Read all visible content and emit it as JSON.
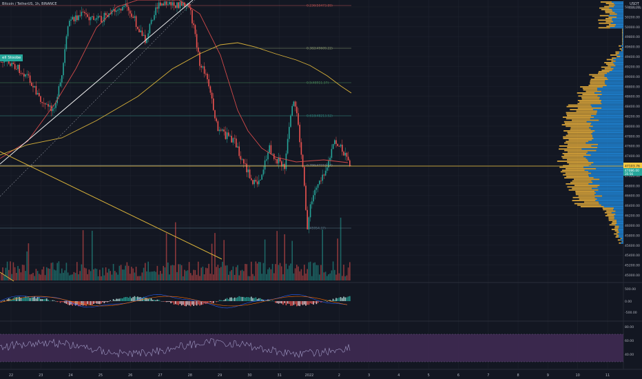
{
  "header": {
    "title": "Bitcoin / TetherUS, 1h, BINANCE",
    "badge": "ell Stoobe",
    "currency": "USDT",
    "currency_sub": "50441.48"
  },
  "colors": {
    "background": "#131722",
    "up": "#26a69a",
    "down": "#ef5350",
    "volume_profile_up": "#2196f3",
    "volume_profile_down": "#f0b43c",
    "current_price_line": "#f5c842",
    "ma_red": "#d24a4a",
    "ma_yellow": "#d9b23a",
    "trendline": "#f0f0f0",
    "fib_line": "#3a5a4a",
    "rsi_band": "#3f2a52",
    "rsi_line": "#a29cc7"
  },
  "price_axis": {
    "ticks": [
      "50400.00",
      "50200.00",
      "50000.00",
      "49800.00",
      "49600.00",
      "49400.00",
      "49200.00",
      "49000.00",
      "48800.00",
      "48600.00",
      "48400.00",
      "48200.00",
      "48000.00",
      "47800.00",
      "47600.00",
      "47400.00",
      "47200.00",
      "47000.00",
      "46800.00",
      "46600.00",
      "46400.00",
      "46200.00",
      "46000.00",
      "45800.00",
      "45600.00",
      "45400.00",
      "45200.00",
      "45000.00"
    ],
    "current_price_tag": "47103.76",
    "secondary_tag": "47086.00",
    "secondary_tag_2": "35:56"
  },
  "macd_axis": {
    "ticks": [
      "500.00",
      "0.00",
      "-500.00"
    ]
  },
  "rsi_axis": {
    "ticks": [
      "80.00",
      "60.00",
      "40.00"
    ]
  },
  "time_axis": {
    "labels": [
      "22",
      "23",
      "24",
      "25",
      "26",
      "27",
      "28",
      "29",
      "30",
      "31",
      "2022",
      "2",
      "3",
      "4",
      "5",
      "6",
      "7",
      "8",
      "9",
      "10",
      "11"
    ]
  },
  "fib_levels": [
    {
      "label": "0.236(50473.89)"
    },
    {
      "label": "0.382(49609.22)"
    },
    {
      "label": "0.5(48911.37)"
    },
    {
      "label": "0.618(48213.52)"
    },
    {
      "label": "0.786(47219.94)"
    },
    {
      "label": "1(45954.37)"
    }
  ],
  "chart_data": {
    "type": "candlestick",
    "timeframe": "1h",
    "ylim": [
      45000,
      50500
    ],
    "current_price": 47103.76,
    "x_categories": [
      "22",
      "23",
      "24",
      "25",
      "26",
      "27",
      "28",
      "29",
      "30",
      "31",
      "2022",
      "2",
      "3",
      "4",
      "5",
      "6",
      "7",
      "8",
      "9",
      "10",
      "11"
    ]
  }
}
